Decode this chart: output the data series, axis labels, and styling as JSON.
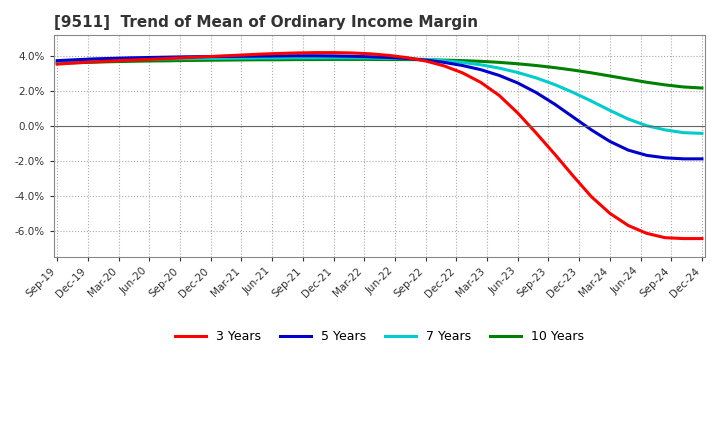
{
  "title": "[9511]  Trend of Mean of Ordinary Income Margin",
  "title_fontsize": 11,
  "ylim": [
    -7.5,
    5.2
  ],
  "yticks": [
    4.0,
    2.0,
    0.0,
    -2.0,
    -4.0,
    -6.0
  ],
  "background_color": "#ffffff",
  "grid_color": "#aaaaaa",
  "series": {
    "3 Years": {
      "color": "#ff0000",
      "data": [
        3.55,
        3.62,
        3.68,
        3.73,
        3.78,
        3.82,
        3.87,
        3.92,
        3.97,
        4.02,
        4.07,
        4.12,
        4.16,
        4.19,
        4.21,
        4.21,
        4.19,
        4.14,
        4.05,
        3.92,
        3.73,
        3.45,
        3.05,
        2.5,
        1.75,
        0.75,
        -0.4,
        -1.6,
        -2.85,
        -4.05,
        -5.0,
        -5.7,
        -6.15,
        -6.4,
        -6.45,
        -6.45
      ]
    },
    "5 Years": {
      "color": "#0000cc",
      "data": [
        3.75,
        3.8,
        3.85,
        3.88,
        3.91,
        3.93,
        3.95,
        3.97,
        3.98,
        3.99,
        4.0,
        4.01,
        4.02,
        4.03,
        4.03,
        4.02,
        4.0,
        3.97,
        3.93,
        3.87,
        3.78,
        3.65,
        3.47,
        3.23,
        2.9,
        2.47,
        1.92,
        1.26,
        0.52,
        -0.22,
        -0.88,
        -1.38,
        -1.68,
        -1.82,
        -1.88,
        -1.88
      ]
    },
    "7 Years": {
      "color": "#00cccc",
      "data": [
        3.68,
        3.72,
        3.76,
        3.79,
        3.81,
        3.83,
        3.85,
        3.86,
        3.87,
        3.88,
        3.89,
        3.9,
        3.9,
        3.91,
        3.91,
        3.91,
        3.91,
        3.9,
        3.88,
        3.86,
        3.82,
        3.75,
        3.65,
        3.51,
        3.32,
        3.07,
        2.76,
        2.38,
        1.93,
        1.43,
        0.9,
        0.4,
        0.02,
        -0.22,
        -0.38,
        -0.42
      ]
    },
    "10 Years": {
      "color": "#008000",
      "data": [
        3.6,
        3.63,
        3.66,
        3.69,
        3.71,
        3.73,
        3.74,
        3.76,
        3.77,
        3.78,
        3.79,
        3.8,
        3.8,
        3.81,
        3.81,
        3.82,
        3.82,
        3.82,
        3.81,
        3.81,
        3.8,
        3.78,
        3.75,
        3.71,
        3.65,
        3.57,
        3.47,
        3.35,
        3.21,
        3.05,
        2.87,
        2.69,
        2.51,
        2.36,
        2.24,
        2.18
      ]
    }
  },
  "x_labels": [
    "Sep-19",
    "Dec-19",
    "Mar-20",
    "Jun-20",
    "Sep-20",
    "Dec-20",
    "Mar-21",
    "Jun-21",
    "Sep-21",
    "Dec-21",
    "Mar-22",
    "Jun-22",
    "Sep-22",
    "Dec-22",
    "Mar-23",
    "Jun-23",
    "Sep-23",
    "Dec-23",
    "Mar-24",
    "Jun-24",
    "Sep-24",
    "Dec-24"
  ],
  "n_points": 36,
  "legend_labels": [
    "3 Years",
    "5 Years",
    "7 Years",
    "10 Years"
  ],
  "legend_colors": [
    "#ff0000",
    "#0000cc",
    "#00cccc",
    "#008000"
  ]
}
